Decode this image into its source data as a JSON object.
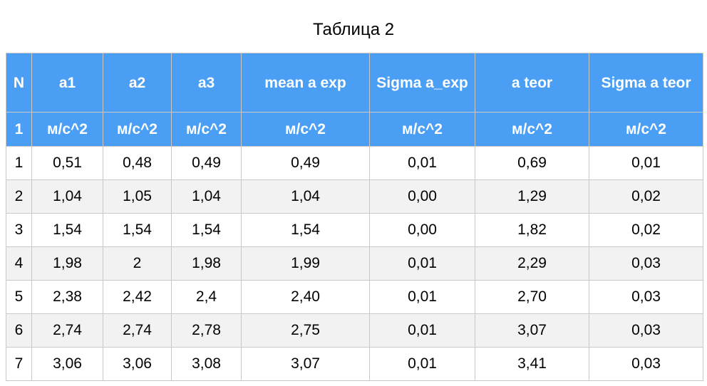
{
  "caption": "Таблица 2",
  "header": [
    "N",
    "a1",
    "a2",
    "a3",
    "mean a exp",
    "Sigma a_exp",
    "a teor",
    "Sigma a teor"
  ],
  "units": [
    "1",
    "м/с^2",
    "м/с^2",
    "м/с^2",
    "м/с^2",
    "м/с^2",
    "м/с^2",
    "м/с^2"
  ],
  "rows": [
    [
      "1",
      "0,51",
      "0,48",
      "0,49",
      "0,49",
      "0,01",
      "0,69",
      "0,01"
    ],
    [
      "2",
      "1,04",
      "1,05",
      "1,04",
      "1,04",
      "0,00",
      "1,29",
      "0,02"
    ],
    [
      "3",
      "1,54",
      "1,54",
      "1,54",
      "1,54",
      "0,00",
      "1,82",
      "0,02"
    ],
    [
      "4",
      "1,98",
      "2",
      "1,98",
      "1,99",
      "0,01",
      "2,29",
      "0,03"
    ],
    [
      "5",
      "2,38",
      "2,42",
      "2,4",
      "2,40",
      "0,01",
      "2,70",
      "0,03"
    ],
    [
      "6",
      "2,74",
      "2,74",
      "2,78",
      "2,75",
      "0,01",
      "3,07",
      "0,03"
    ],
    [
      "7",
      "3,06",
      "3,06",
      "3,08",
      "3,07",
      "0,01",
      "3,41",
      "0,03"
    ]
  ],
  "colors": {
    "header_background": "#4a9ff5",
    "header_text": "#ffffff",
    "stripe_background": "#f2f2f2",
    "grid_line": "#c8c8c8"
  }
}
